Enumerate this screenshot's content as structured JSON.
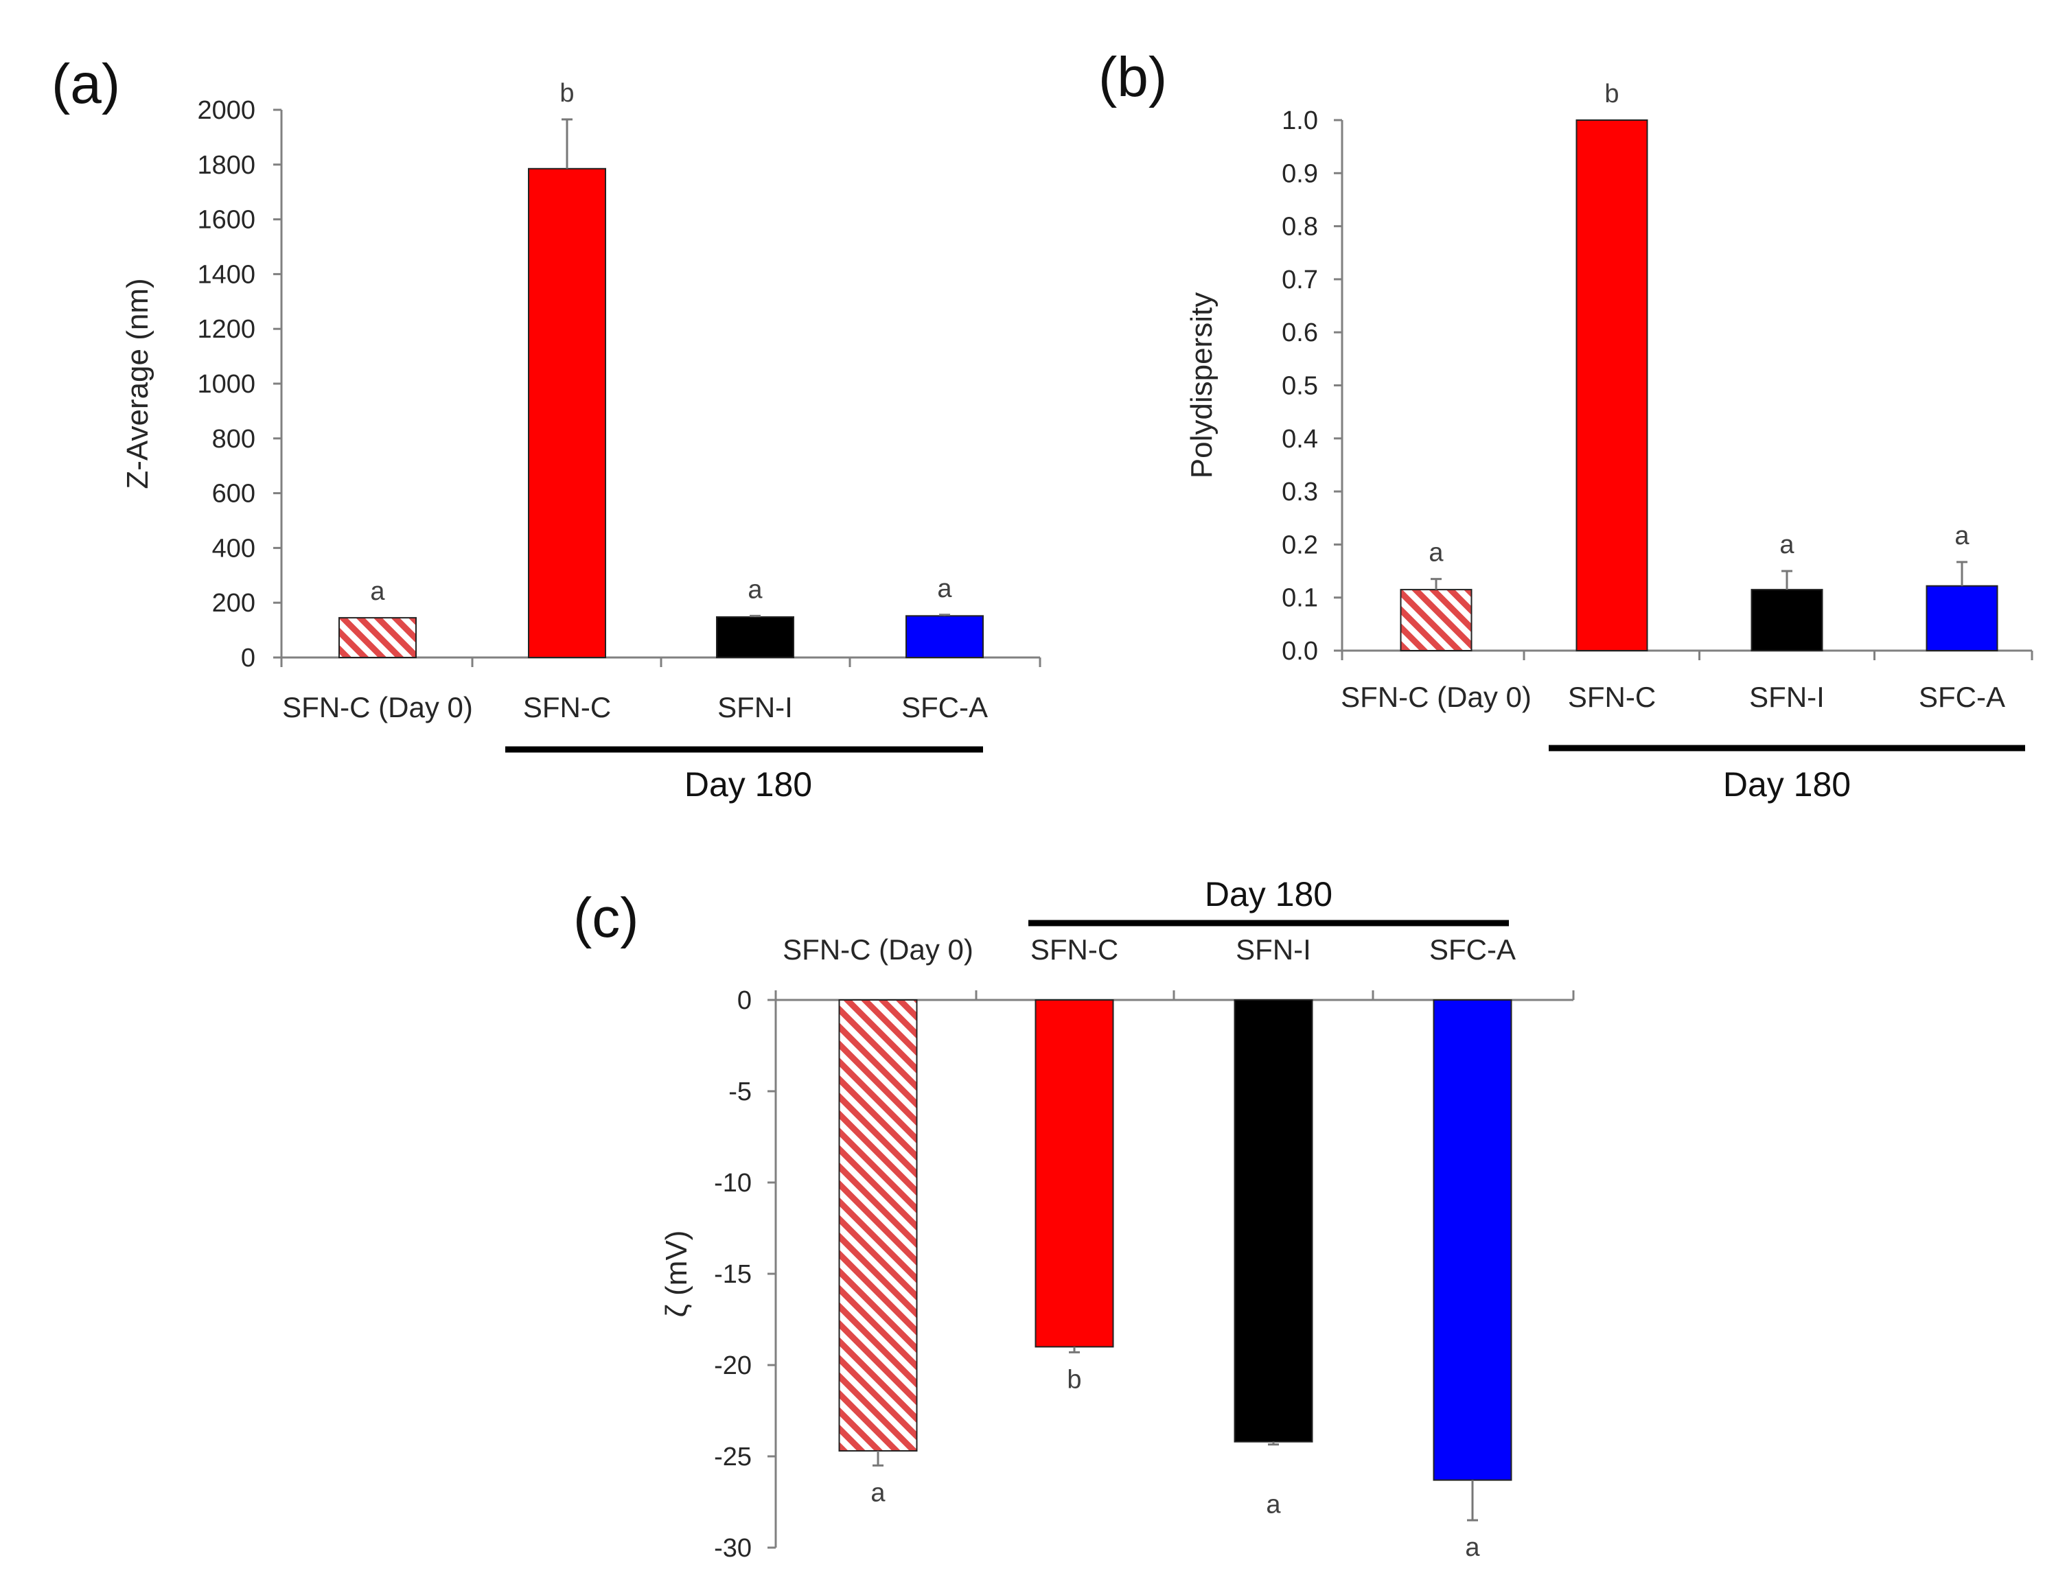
{
  "colors": {
    "hatch": "#e04848",
    "red": "#ff0000",
    "black": "#000000",
    "blue": "#0000ff"
  },
  "chart_data": [
    {
      "panel": "(a)",
      "type": "bar",
      "ylabel": "Z-Average (nm)",
      "ylim": [
        0,
        2000
      ],
      "yticks": [
        "0",
        "200",
        "400",
        "600",
        "800",
        "1000",
        "1200",
        "1400",
        "1600",
        "1800",
        "2000"
      ],
      "categories": [
        "SFN-C (Day 0)",
        "SFN-C",
        "SFN-I",
        "SFC-A"
      ],
      "values": [
        145,
        1785,
        148,
        152
      ],
      "errors": [
        0,
        180,
        4,
        4
      ],
      "letters": [
        "a",
        "b",
        "a",
        "a"
      ],
      "fills": [
        "hatch",
        "red",
        "black",
        "blue"
      ],
      "group_label": "Day 180"
    },
    {
      "panel": "(b)",
      "type": "bar",
      "ylabel": "Polydispersity",
      "ylim": [
        0,
        1.0
      ],
      "yticks": [
        "0.0",
        "0.1",
        "0.2",
        "0.3",
        "0.4",
        "0.5",
        "0.6",
        "0.7",
        "0.8",
        "0.9",
        "1.0"
      ],
      "categories": [
        "SFN-C (Day 0)",
        "SFN-C",
        "SFN-I",
        "SFC-A"
      ],
      "values": [
        0.115,
        1.0,
        0.115,
        0.122
      ],
      "errors": [
        0.02,
        0,
        0.035,
        0.045
      ],
      "letters": [
        "a",
        "b",
        "a",
        "a"
      ],
      "fills": [
        "hatch",
        "red",
        "black",
        "blue"
      ],
      "group_label": "Day 180"
    },
    {
      "panel": "(c)",
      "type": "bar",
      "ylabel": "ζ (mV)",
      "ylim": [
        -30,
        0
      ],
      "yticks": [
        "0",
        "-5",
        "-10",
        "-15",
        "-20",
        "-25",
        "-30"
      ],
      "categories": [
        "SFN-C (Day 0)",
        "SFN-C",
        "SFN-I",
        "SFC-A"
      ],
      "values": [
        -24.7,
        -19.0,
        -24.2,
        -26.3
      ],
      "errors": [
        0.8,
        0.3,
        0.15,
        2.2
      ],
      "letters": [
        "a",
        "b",
        "a",
        "a"
      ],
      "fills": [
        "hatch",
        "red",
        "black",
        "blue"
      ],
      "group_label": "Day 180"
    }
  ]
}
